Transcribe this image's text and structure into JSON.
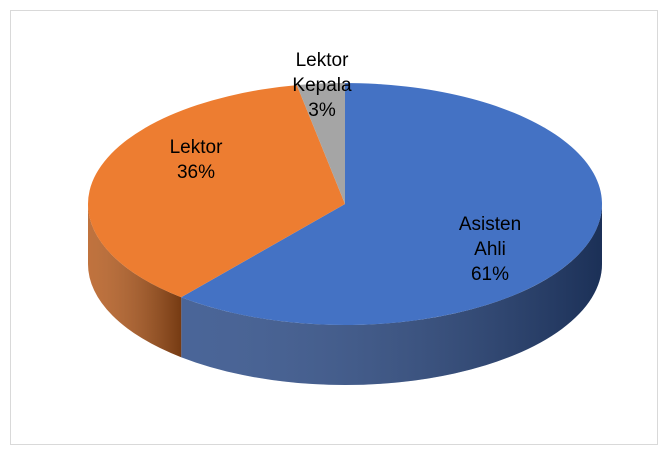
{
  "chart_data": {
    "type": "pie",
    "categories": [
      "Asisten Ahli",
      "Lektor",
      "Lektor Kepala"
    ],
    "values": [
      61,
      36,
      3
    ],
    "value_labels": [
      "61%",
      "36%",
      "3%"
    ],
    "colors": [
      "#4472c4",
      "#ed7d31",
      "#a5a5a5"
    ],
    "side_colors": [
      "#2a4a86",
      "#b55a1c",
      "#7a7a7a"
    ]
  }
}
